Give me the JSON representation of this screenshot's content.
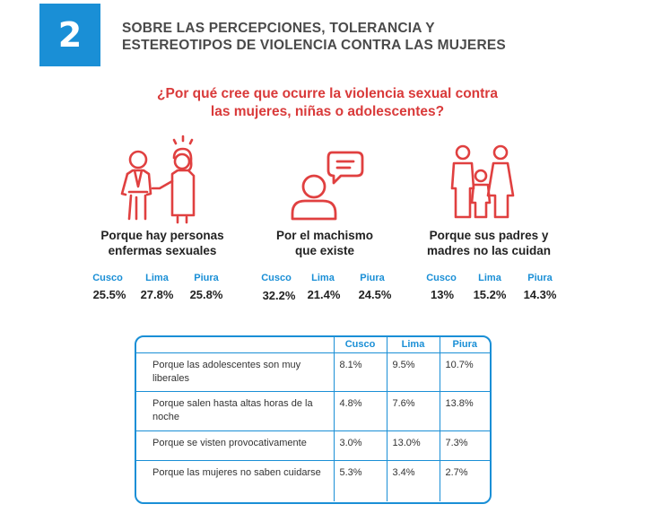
{
  "header": {
    "section_number": "2",
    "title": "SOBRE LAS PERCEPCIONES, TOLERANCIA Y ESTEREOTIPOS DE VIOLENCIA CONTRA LAS MUJERES"
  },
  "question": {
    "line1": "¿Por qué cree que ocurre la violencia sexual contra",
    "line2": "las mujeres, niñas o adolescentes?"
  },
  "categories": [
    {
      "icon": "couple-harassment-icon",
      "label_line1": "Porque hay personas",
      "label_line2": "enfermas sexuales",
      "stats": [
        {
          "city": "Cusco",
          "value": "25.5%"
        },
        {
          "city": "Lima",
          "value": "27.8%"
        },
        {
          "city": "Piura",
          "value": "25.8%"
        }
      ]
    },
    {
      "icon": "person-speech-bubble-icon",
      "label_line1": "Por el machismo",
      "label_line2": "que existe",
      "stats": [
        {
          "city": "Cusco",
          "value": "32.2%"
        },
        {
          "city": "Lima",
          "value": "21.4%"
        },
        {
          "city": "Piura",
          "value": "24.5%"
        }
      ]
    },
    {
      "icon": "family-icon",
      "label_line1": "Porque sus padres y",
      "label_line2": "madres no las cuidan",
      "stats": [
        {
          "city": "Cusco",
          "value": "13%"
        },
        {
          "city": "Lima",
          "value": "15.2%"
        },
        {
          "city": "Piura",
          "value": "14.3%"
        }
      ]
    }
  ],
  "table": {
    "headers": [
      "",
      "Cusco",
      "Lima",
      "Piura"
    ],
    "rows": [
      {
        "reason": "Porque las adolescentes son muy liberales",
        "cusco": "8.1%",
        "lima": "9.5%",
        "piura": "10.7%"
      },
      {
        "reason": "Porque salen hasta altas horas de la noche",
        "cusco": "4.8%",
        "lima": "7.6%",
        "piura": "13.8%"
      },
      {
        "reason": "Porque se visten provocativamente",
        "cusco": "3.0%",
        "lima": "13.0%",
        "piura": "7.3%"
      },
      {
        "reason": "Porque las mujeres no saben cuidarse",
        "cusco": "5.3%",
        "lima": "3.4%",
        "piura": "2.7%"
      }
    ]
  },
  "colors": {
    "accent_blue": "#1a8fd6",
    "question_red": "#d93a3a",
    "icon_red": "#e04040"
  }
}
